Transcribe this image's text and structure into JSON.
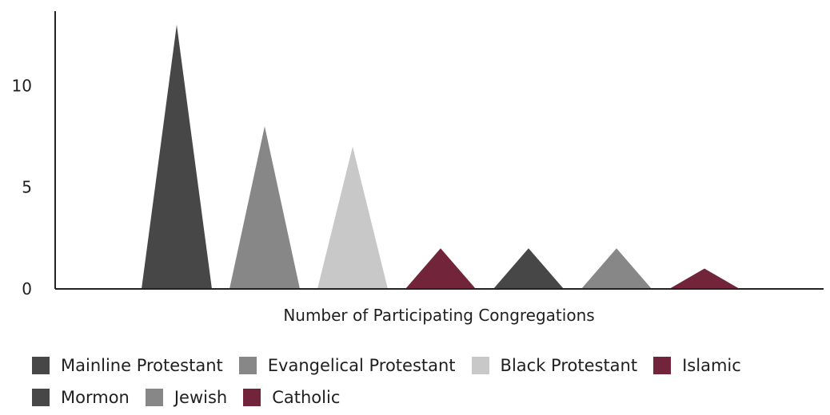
{
  "chart_data": {
    "type": "bar",
    "bar_shape": "triangle",
    "xlabel": "Number of Participating Congregations",
    "ylabel": "",
    "yticks": [
      0,
      5,
      10
    ],
    "ylim": [
      0,
      13
    ],
    "grid": false,
    "legend_position": "bottom",
    "series": [
      {
        "name": "Mainline Protestant",
        "value": 13,
        "color": "#474747"
      },
      {
        "name": "Evangelical Protestant",
        "value": 8,
        "color": "#878787"
      },
      {
        "name": "Black Protestant",
        "value": 7,
        "color": "#c8c8c8"
      },
      {
        "name": "Islamic",
        "value": 2,
        "color": "#72253a"
      },
      {
        "name": "Mormon",
        "value": 2,
        "color": "#474747"
      },
      {
        "name": "Jewish",
        "value": 2,
        "color": "#878787"
      },
      {
        "name": "Catholic",
        "value": 1,
        "color": "#72253a"
      }
    ]
  }
}
